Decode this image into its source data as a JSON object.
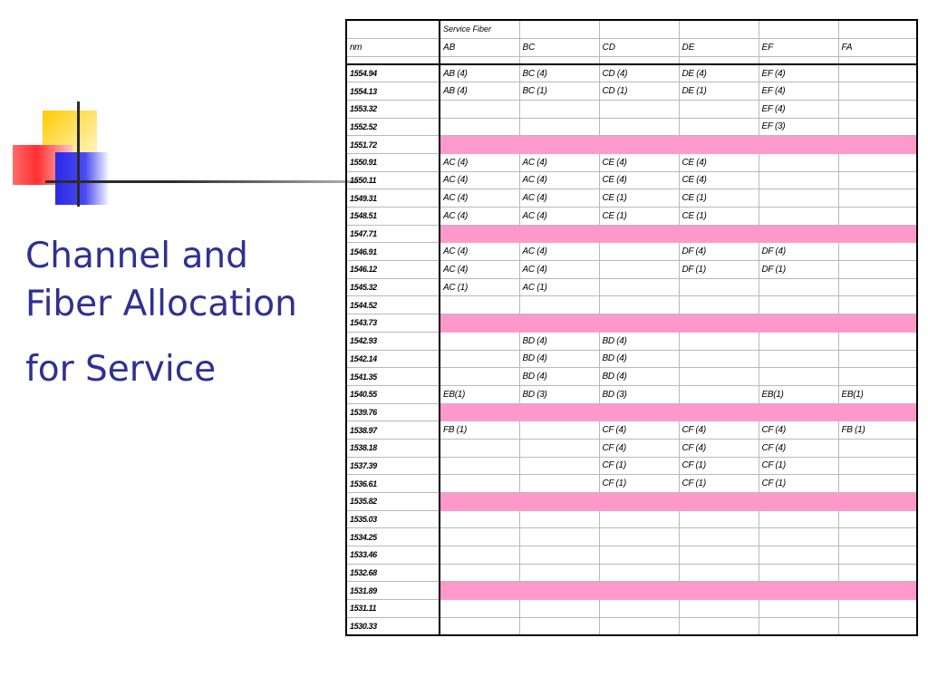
{
  "slide": {
    "title_lines": [
      "Channel and",
      "Fiber Allocation",
      "for Service"
    ]
  },
  "table": {
    "header_group": "Service Fiber",
    "unit_label": "nm",
    "columns": [
      "AB",
      "BC",
      "CD",
      "DE",
      "EF",
      "FA"
    ],
    "highlight_color": "#ff99cc",
    "rows": [
      {
        "nm": "1554.94",
        "cells": [
          "AB (4)",
          "BC (4)",
          "CD (4)",
          "DE (4)",
          "EF (4)",
          ""
        ],
        "highlight": false
      },
      {
        "nm": "1554.13",
        "cells": [
          "AB (4)",
          "BC (1)",
          "CD (1)",
          "DE (1)",
          "EF (4)",
          ""
        ],
        "highlight": false
      },
      {
        "nm": "1553.32",
        "cells": [
          "",
          "",
          "",
          "",
          "EF (4)",
          ""
        ],
        "highlight": false
      },
      {
        "nm": "1552.52",
        "cells": [
          "",
          "",
          "",
          "",
          "EF (3)",
          ""
        ],
        "highlight": false
      },
      {
        "nm": "1551.72",
        "cells": [
          "",
          "",
          "",
          "",
          "",
          ""
        ],
        "highlight": true
      },
      {
        "nm": "1550.91",
        "cells": [
          "AC (4)",
          "AC (4)",
          "CE (4)",
          "CE (4)",
          "",
          ""
        ],
        "highlight": false
      },
      {
        "nm": "1550.11",
        "cells": [
          "AC (4)",
          "AC (4)",
          "CE (4)",
          "CE (4)",
          "",
          ""
        ],
        "highlight": false
      },
      {
        "nm": "1549.31",
        "cells": [
          "AC (4)",
          "AC (4)",
          "CE (1)",
          "CE (1)",
          "",
          ""
        ],
        "highlight": false
      },
      {
        "nm": "1548.51",
        "cells": [
          "AC (4)",
          "AC (4)",
          "CE (1)",
          "CE (1)",
          "",
          ""
        ],
        "highlight": false
      },
      {
        "nm": "1547.71",
        "cells": [
          "",
          "",
          "",
          "",
          "",
          ""
        ],
        "highlight": true
      },
      {
        "nm": "1546.91",
        "cells": [
          "AC (4)",
          "AC (4)",
          "",
          "DF (4)",
          "DF (4)",
          ""
        ],
        "highlight": false
      },
      {
        "nm": "1546.12",
        "cells": [
          "AC (4)",
          "AC (4)",
          "",
          "DF (1)",
          "DF (1)",
          ""
        ],
        "highlight": false
      },
      {
        "nm": "1545.32",
        "cells": [
          "AC (1)",
          "AC (1)",
          "",
          "",
          "",
          ""
        ],
        "highlight": false
      },
      {
        "nm": "1544.52",
        "cells": [
          "",
          "",
          "",
          "",
          "",
          ""
        ],
        "highlight": false
      },
      {
        "nm": "1543.73",
        "cells": [
          "",
          "",
          "",
          "",
          "",
          ""
        ],
        "highlight": true
      },
      {
        "nm": "1542.93",
        "cells": [
          "",
          "BD (4)",
          "BD (4)",
          "",
          "",
          ""
        ],
        "highlight": false
      },
      {
        "nm": "1542.14",
        "cells": [
          "",
          "BD (4)",
          "BD (4)",
          "",
          "",
          ""
        ],
        "highlight": false
      },
      {
        "nm": "1541.35",
        "cells": [
          "",
          "BD (4)",
          "BD (4)",
          "",
          "",
          ""
        ],
        "highlight": false
      },
      {
        "nm": "1540.55",
        "cells": [
          "EB(1)",
          "BD (3)",
          "BD (3)",
          "",
          "EB(1)",
          "EB(1)"
        ],
        "highlight": false
      },
      {
        "nm": "1539.76",
        "cells": [
          "",
          "",
          "",
          "",
          "",
          ""
        ],
        "highlight": true
      },
      {
        "nm": "1538.97",
        "cells": [
          "FB (1)",
          "",
          "CF (4)",
          "CF (4)",
          "CF (4)",
          "FB (1)"
        ],
        "highlight": false
      },
      {
        "nm": "1538.18",
        "cells": [
          "",
          "",
          "CF (4)",
          "CF (4)",
          "CF (4)",
          ""
        ],
        "highlight": false
      },
      {
        "nm": "1537.39",
        "cells": [
          "",
          "",
          "CF (1)",
          "CF (1)",
          "CF (1)",
          ""
        ],
        "highlight": false
      },
      {
        "nm": "1536.61",
        "cells": [
          "",
          "",
          "CF (1)",
          "CF (1)",
          "CF (1)",
          ""
        ],
        "highlight": false
      },
      {
        "nm": "1535.82",
        "cells": [
          "",
          "",
          "",
          "",
          "",
          ""
        ],
        "highlight": true
      },
      {
        "nm": "1535.03",
        "cells": [
          "",
          "",
          "",
          "",
          "",
          ""
        ],
        "highlight": false
      },
      {
        "nm": "1534.25",
        "cells": [
          "",
          "",
          "",
          "",
          "",
          ""
        ],
        "highlight": false
      },
      {
        "nm": "1533.46",
        "cells": [
          "",
          "",
          "",
          "",
          "",
          ""
        ],
        "highlight": false
      },
      {
        "nm": "1532.68",
        "cells": [
          "",
          "",
          "",
          "",
          "",
          ""
        ],
        "highlight": false
      },
      {
        "nm": "1531.89",
        "cells": [
          "",
          "",
          "",
          "",
          "",
          ""
        ],
        "highlight": true
      },
      {
        "nm": "1531.11",
        "cells": [
          "",
          "",
          "",
          "",
          "",
          ""
        ],
        "highlight": false
      },
      {
        "nm": "1530.33",
        "cells": [
          "",
          "",
          "",
          "",
          "",
          ""
        ],
        "highlight": false
      }
    ]
  }
}
